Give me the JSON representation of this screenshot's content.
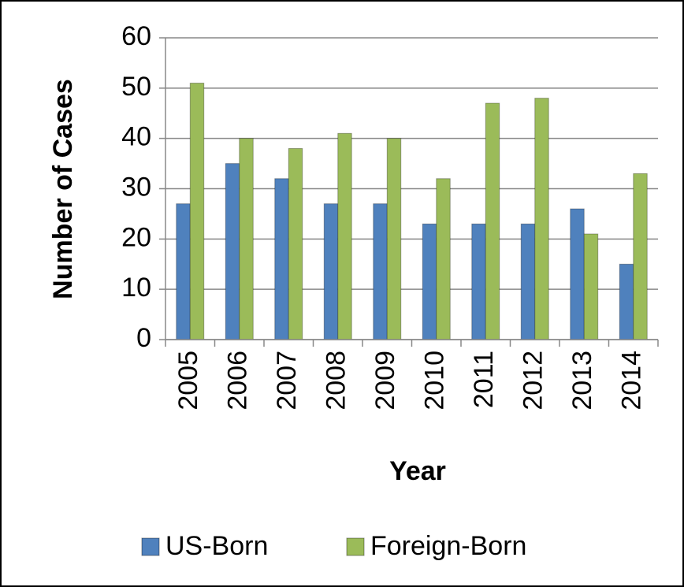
{
  "chart_data": {
    "type": "bar",
    "categories": [
      "2005",
      "2006",
      "2007",
      "2008",
      "2009",
      "2010",
      "2011",
      "2012",
      "2013",
      "2014"
    ],
    "series": [
      {
        "name": "US-Born",
        "color": "#4f81bd",
        "values": [
          27,
          35,
          32,
          27,
          27,
          23,
          23,
          23,
          26,
          15
        ]
      },
      {
        "name": "Foreign-Born",
        "color": "#9bbb59",
        "values": [
          51,
          40,
          38,
          41,
          40,
          32,
          47,
          48,
          21,
          33
        ]
      }
    ],
    "x_label": "Year",
    "y_label": "Number of Cases",
    "ylim": [
      0,
      60
    ],
    "yticks": [
      0,
      10,
      20,
      30,
      40,
      50,
      60
    ],
    "grid": true,
    "legend": "bottom"
  }
}
